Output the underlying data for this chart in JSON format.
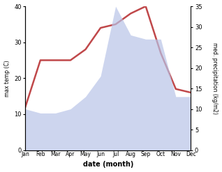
{
  "months": [
    "Jan",
    "Feb",
    "Mar",
    "Apr",
    "May",
    "Jun",
    "Jul",
    "Aug",
    "Sep",
    "Oct",
    "Nov",
    "Dec"
  ],
  "temp": [
    12,
    25,
    25,
    25,
    28,
    34,
    35,
    38,
    40,
    27,
    17,
    16
  ],
  "precip": [
    10,
    9,
    9,
    10,
    13,
    18,
    35,
    28,
    27,
    27,
    13,
    13
  ],
  "temp_color": "#c0484a",
  "precip_color": "#b8c4e8",
  "temp_ylim": [
    0,
    40
  ],
  "precip_ylim": [
    0,
    35
  ],
  "temp_yticks": [
    0,
    10,
    20,
    30,
    40
  ],
  "precip_yticks": [
    0,
    5,
    10,
    15,
    20,
    25,
    30,
    35
  ],
  "xlabel": "date (month)",
  "ylabel_left": "max temp (C)",
  "ylabel_right": "med. precipitation (kg/m2)",
  "background_color": "#ffffff",
  "temp_linewidth": 1.8
}
